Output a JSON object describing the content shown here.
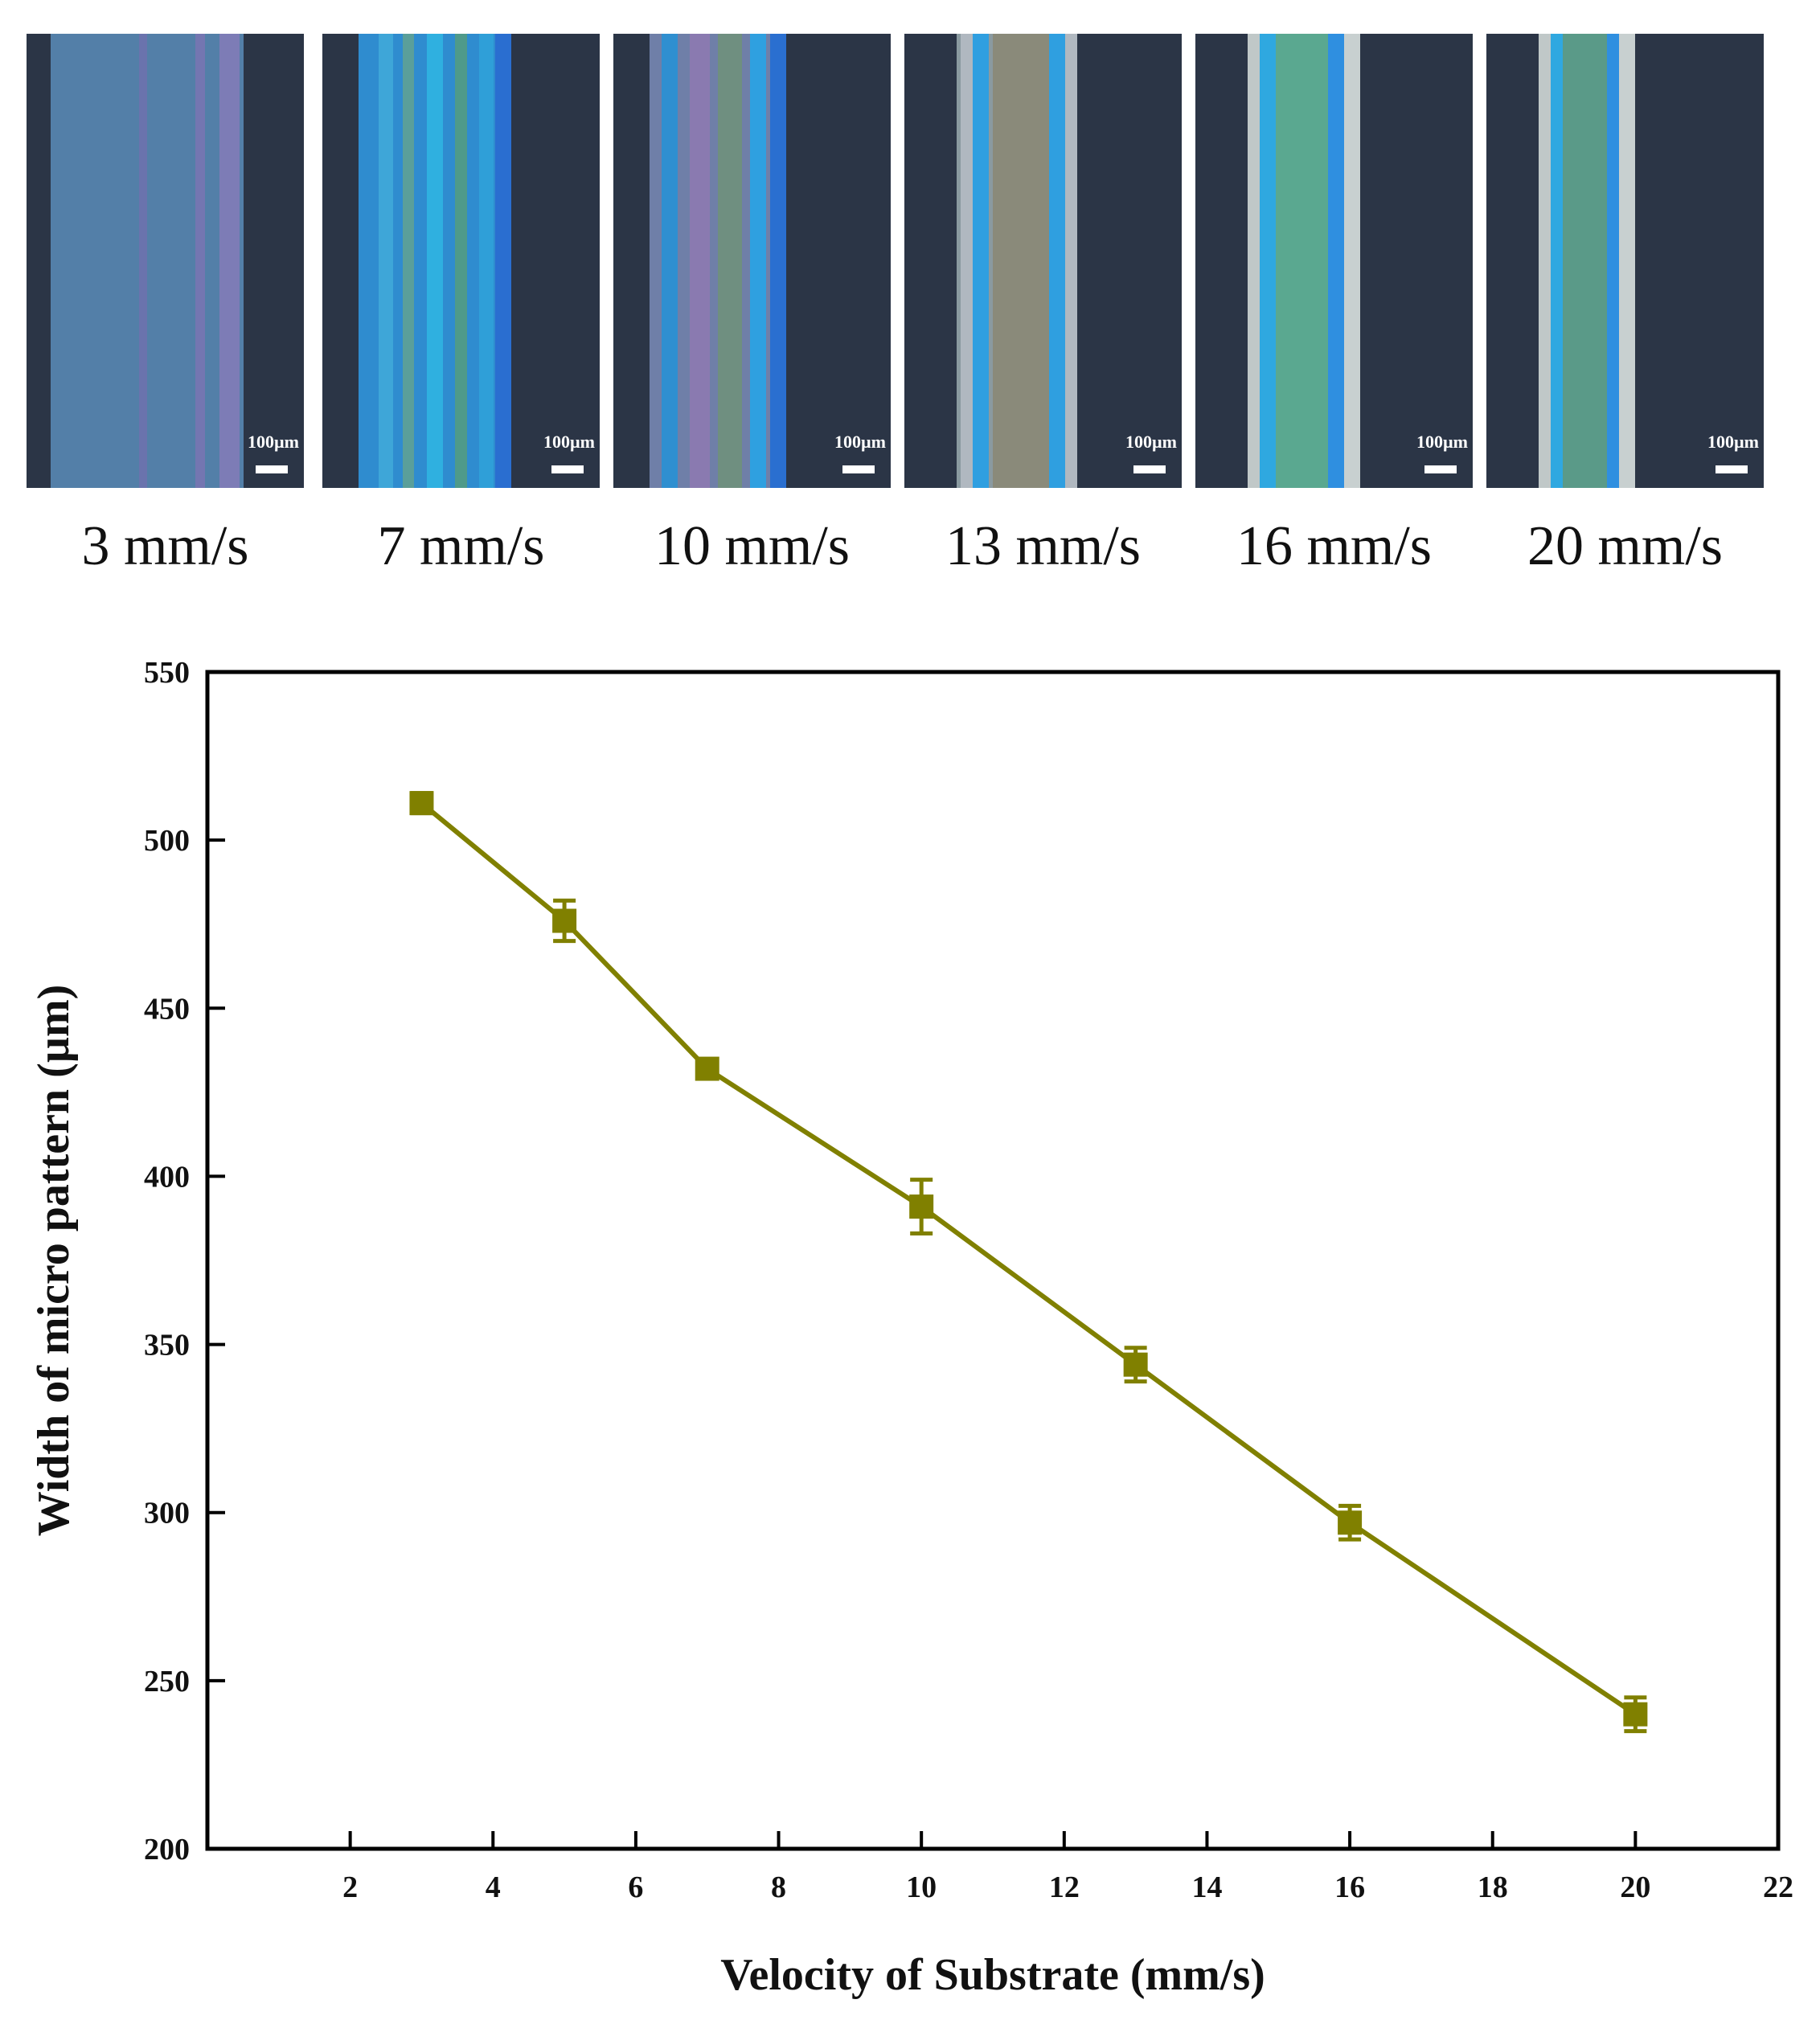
{
  "micrographs": [
    {
      "speed_label": "3 mm/s",
      "scale_label": "100µm"
    },
    {
      "speed_label": "7 mm/s",
      "scale_label": "100µm"
    },
    {
      "speed_label": "10 mm/s",
      "scale_label": "100µm"
    },
    {
      "speed_label": "13 mm/s",
      "scale_label": "100µm"
    },
    {
      "speed_label": "16 mm/s",
      "scale_label": "100µm"
    },
    {
      "speed_label": "20 mm/s",
      "scale_label": "100µm"
    }
  ],
  "chart_data": {
    "type": "line",
    "title": "",
    "xlabel": "Velocity of Substrate (mm/s)",
    "ylabel": "Width of micro pattern (µm)",
    "xlim": [
      0,
      22
    ],
    "ylim": [
      200,
      550
    ],
    "xticks": [
      2,
      4,
      6,
      8,
      10,
      12,
      14,
      16,
      18,
      20,
      22
    ],
    "yticks": [
      200,
      250,
      300,
      350,
      400,
      450,
      500,
      550
    ],
    "grid": false,
    "series": [
      {
        "name": "Width of micro pattern",
        "color": "#808000",
        "marker": "square",
        "x": [
          3,
          5,
          7,
          10,
          13,
          16,
          20
        ],
        "y": [
          511,
          476,
          432,
          391,
          344,
          297,
          240
        ],
        "error": [
          3,
          6,
          2,
          8,
          5,
          5,
          5
        ]
      }
    ]
  }
}
